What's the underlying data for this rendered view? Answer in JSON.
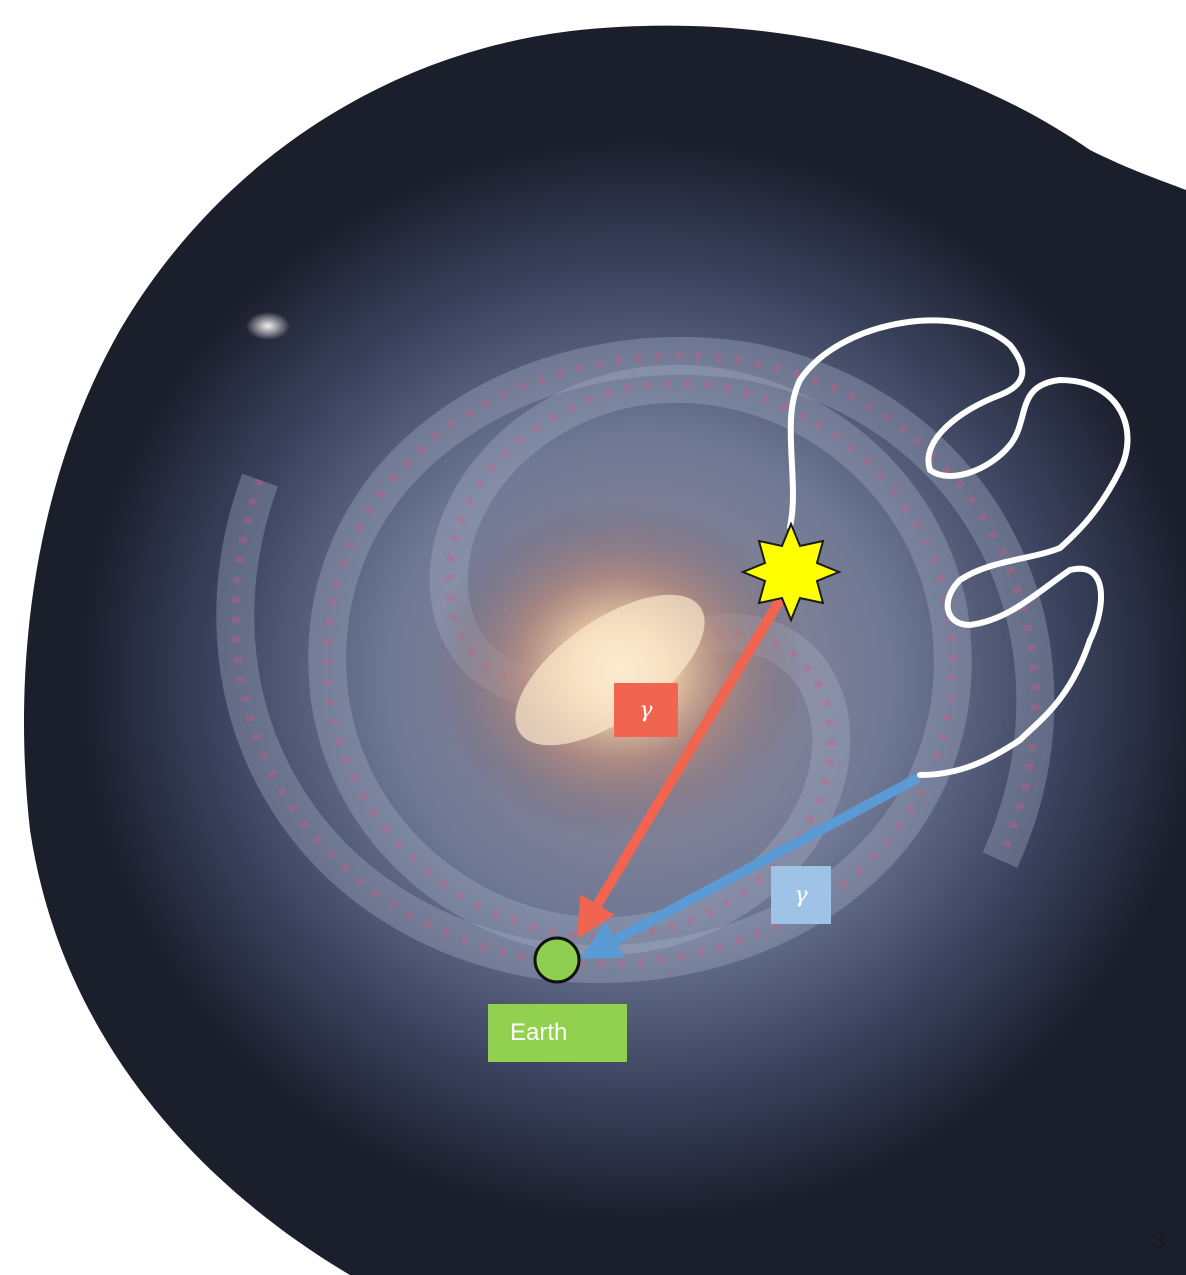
{
  "colors": {
    "background": "#ffffff",
    "galaxy_space": "#1b1f2c",
    "galaxy_core": "#f2d5b0",
    "galaxy_arm": "#8a93ad",
    "star_forming": "#d85a7a",
    "red_photon": "#f06450",
    "blue_photon": "#5b9bd5",
    "blue_label": "#9fc3e6",
    "earth": "#8fcf4f",
    "earth_label": "#92d050",
    "star": "#ffff00",
    "path": "#ffffff"
  },
  "icons": {
    "source": "star-burst-icon",
    "earth": "earth-circle-icon"
  },
  "labels": {
    "gamma_red": "γ",
    "gamma_blue": "γ",
    "earth": "Earth"
  },
  "page_number": "3"
}
